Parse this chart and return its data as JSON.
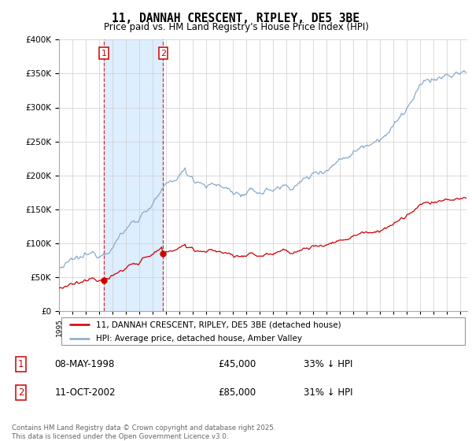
{
  "title": "11, DANNAH CRESCENT, RIPLEY, DE5 3BE",
  "subtitle": "Price paid vs. HM Land Registry's House Price Index (HPI)",
  "legend_line1": "11, DANNAH CRESCENT, RIPLEY, DE5 3BE (detached house)",
  "legend_line2": "HPI: Average price, detached house, Amber Valley",
  "purchase1_date": "08-MAY-1998",
  "purchase1_price": "£45,000",
  "purchase1_hpi": "33% ↓ HPI",
  "purchase1_year": 1998.36,
  "purchase1_value": 45000,
  "purchase2_date": "11-OCT-2002",
  "purchase2_price": "£85,000",
  "purchase2_hpi": "31% ↓ HPI",
  "purchase2_year": 2002.78,
  "purchase2_value": 85000,
  "line_color_property": "#cc0000",
  "line_color_hpi": "#88aacc",
  "shaded_region_color": "#ddeeff",
  "vline_color": "#cc0000",
  "ylim": [
    0,
    400000
  ],
  "xlim": [
    1995,
    2025.5
  ],
  "footer": "Contains HM Land Registry data © Crown copyright and database right 2025.\nThis data is licensed under the Open Government Licence v3.0."
}
